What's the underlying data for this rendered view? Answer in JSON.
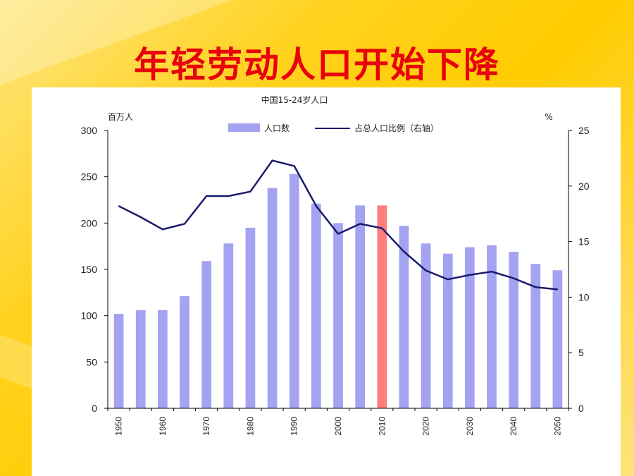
{
  "slide": {
    "title": "年轻劳动人口开始下降"
  },
  "chart_data": {
    "type": "bar",
    "title": "中国15-24岁人口",
    "left_unit": "百万人",
    "right_unit": "%",
    "categories": [
      "1950",
      "1955",
      "1960",
      "1965",
      "1970",
      "1975",
      "1980",
      "1985",
      "1990",
      "1995",
      "2000",
      "2005",
      "2010",
      "2015",
      "2020",
      "2025",
      "2030",
      "2035",
      "2040",
      "2045",
      "2050"
    ],
    "category_labels": [
      "1950",
      "",
      "1960",
      "",
      "1970",
      "",
      "1980",
      "",
      "1990",
      "",
      "2000",
      "",
      "2010",
      "",
      "2020",
      "",
      "2030",
      "",
      "2040",
      "",
      "2050"
    ],
    "series": [
      {
        "name": "人口数",
        "axis": "left",
        "kind": "bar",
        "color": "#a3a3f2",
        "highlight_index": 12,
        "highlight_color": "#ff7d7d",
        "values": [
          102,
          106,
          106,
          121,
          159,
          178,
          195,
          238,
          253,
          221,
          200,
          219,
          219,
          197,
          178,
          167,
          174,
          176,
          169,
          156,
          149
        ]
      },
      {
        "name": "占总人口比例（右轴）",
        "axis": "right",
        "kind": "line",
        "color": "#1a1a6e",
        "values": [
          18.2,
          17.2,
          16.1,
          16.6,
          19.1,
          19.1,
          19.5,
          22.3,
          21.8,
          18.2,
          15.7,
          16.6,
          16.2,
          14.1,
          12.4,
          11.6,
          12.0,
          12.3,
          11.7,
          10.9,
          10.7
        ]
      }
    ],
    "left_axis": {
      "ylim": [
        0,
        300
      ],
      "ticks": [
        0,
        50,
        100,
        150,
        200,
        250,
        300
      ]
    },
    "right_axis": {
      "ylim": [
        0,
        25
      ],
      "ticks": [
        0,
        5,
        10,
        15,
        20,
        25
      ]
    },
    "grid": false,
    "legend_position": "top-center"
  }
}
